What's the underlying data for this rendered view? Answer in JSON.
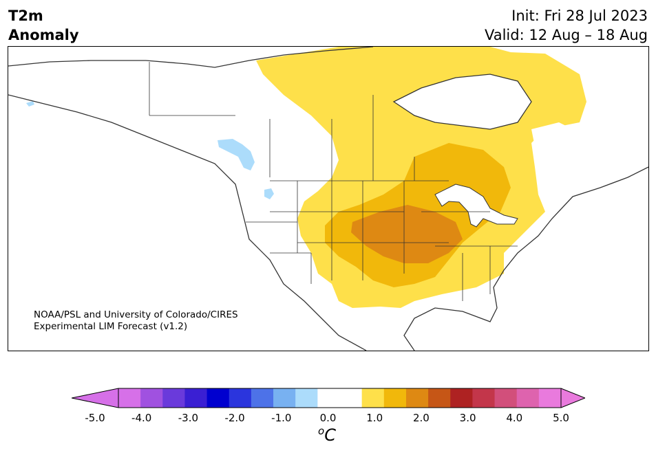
{
  "header": {
    "variable": "T2m",
    "subtitle": "Anomaly",
    "init": "Init: Fri 28 Jul 2023",
    "valid": "Valid: 12 Aug – 18 Aug"
  },
  "credit": {
    "line1": "NOAA/PSL and University of Colorado/CIRES",
    "line2": "Experimental LIM Forecast (v1.2)"
  },
  "colorbar": {
    "unit_sup": "o",
    "unit": "C",
    "ticks": [
      "-5.0",
      "-4.0",
      "-3.0",
      "-2.0",
      "-1.0",
      "0.0",
      "1.0",
      "2.0",
      "3.0",
      "4.0",
      "5.0"
    ],
    "colors": [
      "#d670e8",
      "#a051e0",
      "#6a3adb",
      "#3a1fd3",
      "#0000cf",
      "#2b35dd",
      "#4d72e8",
      "#78b1f1",
      "#acdcfb",
      "#ffffff",
      "#ffffff",
      "#fee04a",
      "#f1b80b",
      "#de8913",
      "#c65616",
      "#ae2222",
      "#c3364a",
      "#d24f7b",
      "#de63ae",
      "#e97add"
    ],
    "under_color": "#d670e8",
    "over_color": "#e97add"
  },
  "map": {
    "ocean_color": "#ffffff",
    "coast_color": "#333333"
  }
}
